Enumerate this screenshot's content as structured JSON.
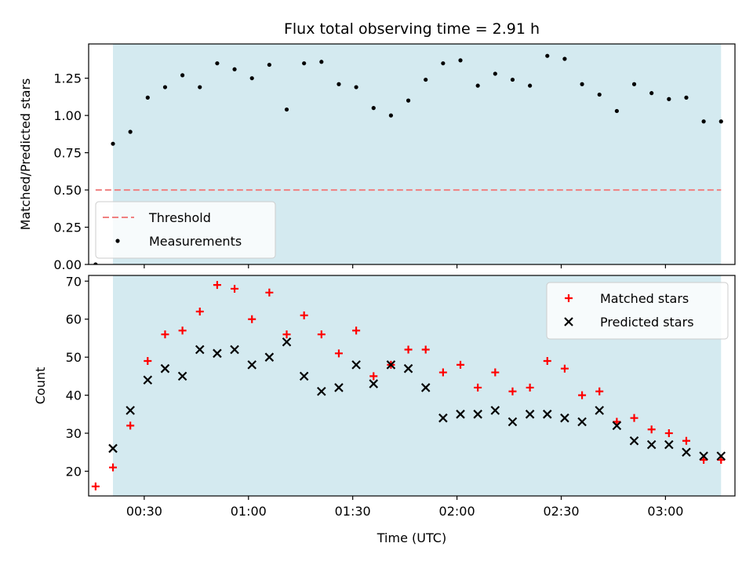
{
  "chart_data": {
    "type": "scatter",
    "title": "Flux total observing time = 2.91 h",
    "shared_x": {
      "xlabel": "Time (UTC)",
      "xlim": [
        "00:14:00",
        "03:20:00"
      ],
      "xticks": [
        "00:30",
        "01:00",
        "01:30",
        "02:00",
        "02:30",
        "03:00"
      ],
      "tick_label_format": "HH:MM",
      "shaded_region": {
        "start": "00:21:00",
        "end": "03:16:00",
        "color": "#d4eaf0"
      }
    },
    "panels": [
      {
        "ylabel": "Matched/Predicted stars",
        "ylim": [
          0,
          1.48
        ],
        "yticks": [
          "0.00",
          "0.25",
          "0.50",
          "0.75",
          "1.00",
          "1.25"
        ],
        "legend_position": "lower-left",
        "threshold": {
          "name": "Threshold",
          "value": 0.5,
          "start": "00:16:00",
          "end": "03:16:00",
          "color": "#f08080",
          "style": "dashed"
        },
        "series": [
          {
            "name": "Measurements",
            "marker": "dot",
            "color": "#000000",
            "points": [
              [
                "00:16",
                0.0
              ],
              [
                "00:21",
                0.81
              ],
              [
                "00:26",
                0.89
              ],
              [
                "00:31",
                1.12
              ],
              [
                "00:36",
                1.19
              ],
              [
                "00:41",
                1.27
              ],
              [
                "00:46",
                1.19
              ],
              [
                "00:51",
                1.35
              ],
              [
                "00:56",
                1.31
              ],
              [
                "01:01",
                1.25
              ],
              [
                "01:06",
                1.34
              ],
              [
                "01:11",
                1.04
              ],
              [
                "01:16",
                1.35
              ],
              [
                "01:21",
                1.36
              ],
              [
                "01:26",
                1.21
              ],
              [
                "01:31",
                1.19
              ],
              [
                "01:36",
                1.05
              ],
              [
                "01:41",
                1.0
              ],
              [
                "01:46",
                1.1
              ],
              [
                "01:51",
                1.24
              ],
              [
                "01:56",
                1.35
              ],
              [
                "02:01",
                1.37
              ],
              [
                "02:06",
                1.2
              ],
              [
                "02:11",
                1.28
              ],
              [
                "02:16",
                1.24
              ],
              [
                "02:21",
                1.2
              ],
              [
                "02:26",
                1.4
              ],
              [
                "02:31",
                1.38
              ],
              [
                "02:36",
                1.21
              ],
              [
                "02:41",
                1.14
              ],
              [
                "02:46",
                1.03
              ],
              [
                "02:51",
                1.21
              ],
              [
                "02:56",
                1.15
              ],
              [
                "03:01",
                1.11
              ],
              [
                "03:06",
                1.12
              ],
              [
                "03:11",
                0.96
              ],
              [
                "03:16",
                0.96
              ]
            ]
          }
        ]
      },
      {
        "ylabel": "Count",
        "ylim": [
          13.5,
          71.5
        ],
        "yticks": [
          "20",
          "30",
          "40",
          "50",
          "60",
          "70"
        ],
        "legend_position": "upper-right",
        "series": [
          {
            "name": "Matched stars",
            "marker": "plus",
            "color": "#ff0000",
            "points": [
              [
                "00:16",
                16
              ],
              [
                "00:21",
                21
              ],
              [
                "00:26",
                32
              ],
              [
                "00:31",
                49
              ],
              [
                "00:36",
                56
              ],
              [
                "00:41",
                57
              ],
              [
                "00:46",
                62
              ],
              [
                "00:51",
                69
              ],
              [
                "00:56",
                68
              ],
              [
                "01:01",
                60
              ],
              [
                "01:06",
                67
              ],
              [
                "01:11",
                56
              ],
              [
                "01:16",
                61
              ],
              [
                "01:21",
                56
              ],
              [
                "01:26",
                51
              ],
              [
                "01:31",
                57
              ],
              [
                "01:36",
                45
              ],
              [
                "01:41",
                48
              ],
              [
                "01:46",
                52
              ],
              [
                "01:51",
                52
              ],
              [
                "01:56",
                46
              ],
              [
                "02:01",
                48
              ],
              [
                "02:06",
                42
              ],
              [
                "02:11",
                46
              ],
              [
                "02:16",
                41
              ],
              [
                "02:21",
                42
              ],
              [
                "02:26",
                49
              ],
              [
                "02:31",
                47
              ],
              [
                "02:36",
                40
              ],
              [
                "02:41",
                41
              ],
              [
                "02:46",
                33
              ],
              [
                "02:51",
                34
              ],
              [
                "02:56",
                31
              ],
              [
                "03:01",
                30
              ],
              [
                "03:06",
                28
              ],
              [
                "03:11",
                23
              ],
              [
                "03:16",
                23
              ]
            ]
          },
          {
            "name": "Predicted stars",
            "marker": "x",
            "color": "#000000",
            "points": [
              [
                "00:21",
                26
              ],
              [
                "00:26",
                36
              ],
              [
                "00:31",
                44
              ],
              [
                "00:36",
                47
              ],
              [
                "00:41",
                45
              ],
              [
                "00:46",
                52
              ],
              [
                "00:51",
                51
              ],
              [
                "00:56",
                52
              ],
              [
                "01:01",
                48
              ],
              [
                "01:06",
                50
              ],
              [
                "01:11",
                54
              ],
              [
                "01:16",
                45
              ],
              [
                "01:21",
                41
              ],
              [
                "01:26",
                42
              ],
              [
                "01:31",
                48
              ],
              [
                "01:36",
                43
              ],
              [
                "01:41",
                48
              ],
              [
                "01:46",
                47
              ],
              [
                "01:51",
                42
              ],
              [
                "01:56",
                34
              ],
              [
                "02:01",
                35
              ],
              [
                "02:06",
                35
              ],
              [
                "02:11",
                36
              ],
              [
                "02:16",
                33
              ],
              [
                "02:21",
                35
              ],
              [
                "02:26",
                35
              ],
              [
                "02:31",
                34
              ],
              [
                "02:36",
                33
              ],
              [
                "02:41",
                36
              ],
              [
                "02:46",
                32
              ],
              [
                "02:51",
                28
              ],
              [
                "02:56",
                27
              ],
              [
                "03:01",
                27
              ],
              [
                "03:06",
                25
              ],
              [
                "03:11",
                24
              ],
              [
                "03:16",
                24
              ]
            ]
          }
        ]
      }
    ]
  }
}
